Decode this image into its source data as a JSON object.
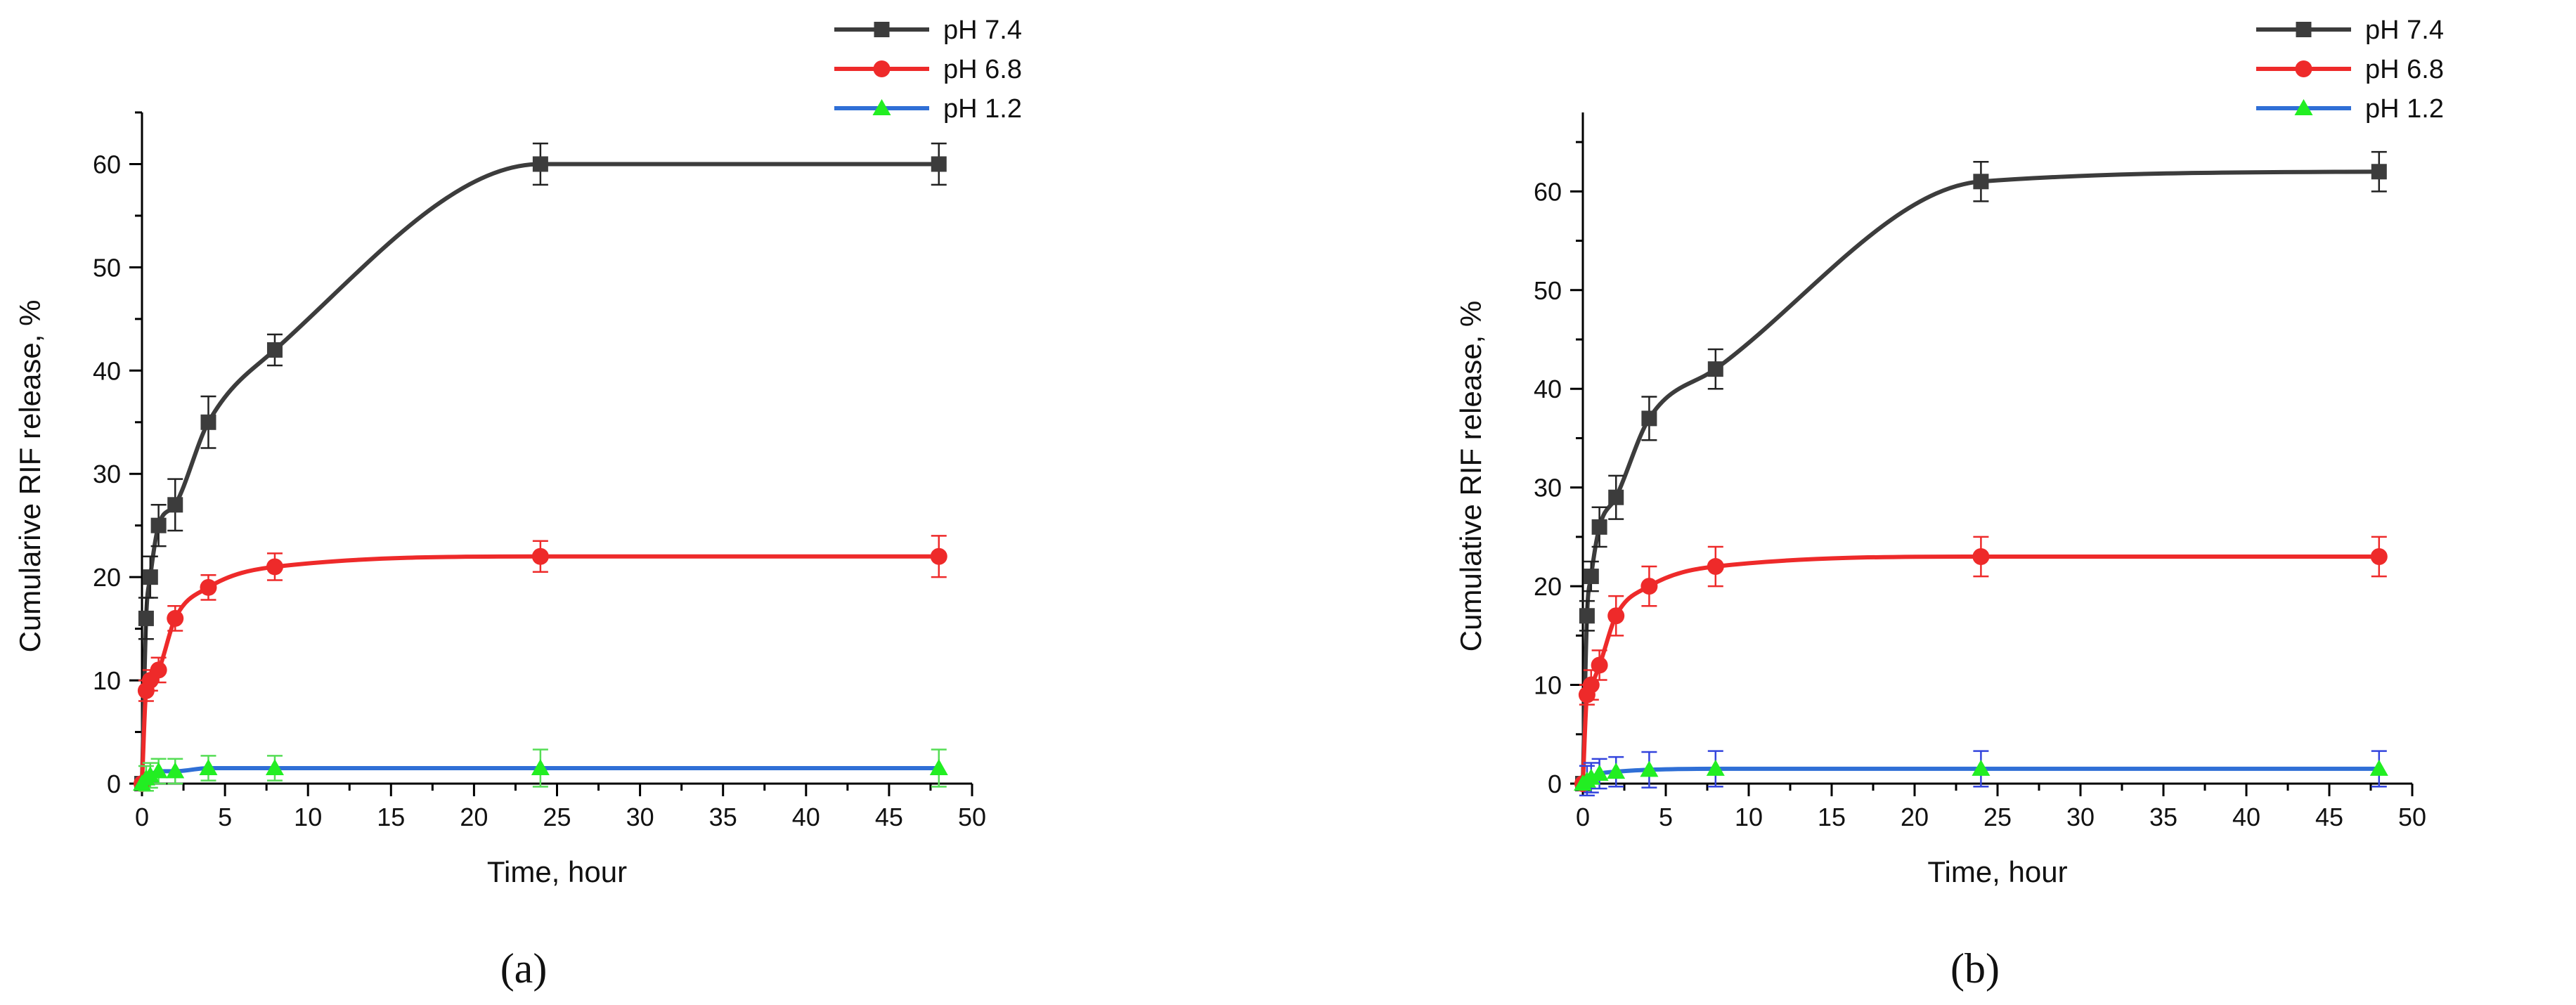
{
  "figure": {
    "panels": [
      "(a)",
      "(b)"
    ]
  },
  "colors": {
    "ph74": "#3c3c3c",
    "ph68": "#ee2a2a",
    "ph12_line": "#2f6fd6",
    "ph12_marker": "#22ee22",
    "ph12_err_a": "#55dd55",
    "ph12_err_b": "#3344dd"
  },
  "chart_data": [
    {
      "type": "line",
      "panel_label": "(a)",
      "xlabel": "Time, hour",
      "ylabel": "Cumularive RIF release, %",
      "xlim": [
        0,
        50
      ],
      "ylim": [
        0,
        65
      ],
      "xticks": [
        0,
        5,
        10,
        15,
        20,
        25,
        30,
        35,
        40,
        45,
        50
      ],
      "yticks": [
        0,
        10,
        20,
        30,
        40,
        50,
        60
      ],
      "legend_position": "top-right",
      "x": [
        0,
        0.25,
        0.5,
        1,
        2,
        4,
        8,
        24,
        48
      ],
      "series": [
        {
          "name": "pH 7.4",
          "marker": "square",
          "values": [
            0,
            16,
            20,
            25,
            27,
            35,
            42,
            60,
            60
          ],
          "errors": [
            0,
            2,
            2,
            2,
            2.5,
            2.5,
            1.5,
            2,
            2
          ]
        },
        {
          "name": "pH 6.8",
          "marker": "circle",
          "values": [
            0,
            9,
            10,
            11,
            16,
            19,
            21,
            22,
            22
          ],
          "errors": [
            0,
            1,
            1,
            1.2,
            1.2,
            1.2,
            1.3,
            1.5,
            2
          ]
        },
        {
          "name": "pH 1.2",
          "marker": "triangle",
          "values": [
            0,
            0.5,
            0.8,
            1.2,
            1.2,
            1.5,
            1.5,
            1.5,
            1.5
          ],
          "errors": [
            0,
            1.2,
            1.2,
            1.2,
            1.2,
            1.2,
            1.2,
            1.8,
            1.8
          ]
        }
      ]
    },
    {
      "type": "line",
      "panel_label": "(b)",
      "xlabel": "Time, hour",
      "ylabel": "Cumulative RIF release, %",
      "xlim": [
        0,
        50
      ],
      "ylim": [
        0,
        68
      ],
      "xticks": [
        0,
        5,
        10,
        15,
        20,
        25,
        30,
        35,
        40,
        45,
        50
      ],
      "yticks": [
        0,
        10,
        20,
        30,
        40,
        50,
        60
      ],
      "legend_position": "top-right",
      "x": [
        0,
        0.25,
        0.5,
        1,
        2,
        4,
        8,
        24,
        48
      ],
      "series": [
        {
          "name": "pH 7.4",
          "marker": "square",
          "values": [
            0,
            17,
            21,
            26,
            29,
            37,
            42,
            61,
            62
          ],
          "errors": [
            0,
            1.5,
            1.5,
            2,
            2.2,
            2.2,
            2,
            2,
            2
          ]
        },
        {
          "name": "pH 6.8",
          "marker": "circle",
          "values": [
            0,
            9,
            10,
            12,
            17,
            20,
            22,
            23,
            23
          ],
          "errors": [
            0,
            1,
            1.5,
            1.5,
            2,
            2,
            2,
            2,
            2
          ]
        },
        {
          "name": "pH 1.2",
          "marker": "triangle",
          "values": [
            0,
            0.3,
            0.6,
            1,
            1.2,
            1.4,
            1.5,
            1.5,
            1.5
          ],
          "errors": [
            0,
            1.5,
            1.5,
            1.5,
            1.5,
            1.8,
            1.8,
            1.8,
            1.8
          ]
        }
      ]
    }
  ]
}
